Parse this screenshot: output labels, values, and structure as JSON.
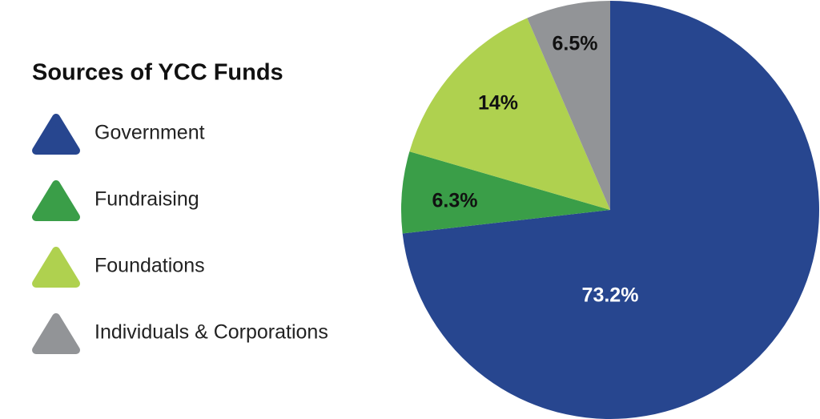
{
  "chart_data": {
    "type": "pie",
    "title": "Sources of YCC Funds",
    "categories": [
      "Government",
      "Fundraising",
      "Foundations",
      "Individuals & Corporations"
    ],
    "values": [
      73.2,
      6.3,
      14,
      6.5
    ],
    "value_labels": [
      "73.2%",
      "6.3%",
      "14%",
      "6.5%"
    ],
    "colors": [
      "#27468f",
      "#3a9e48",
      "#afd14f",
      "#929497"
    ],
    "legend": "left"
  }
}
